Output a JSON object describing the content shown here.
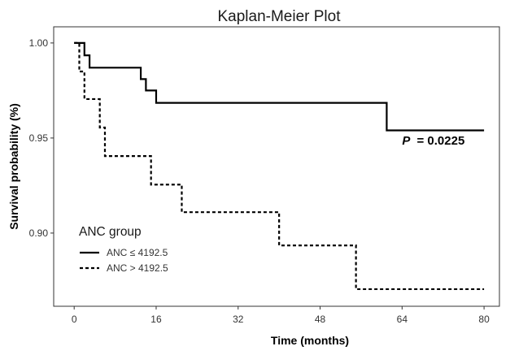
{
  "chart_data": {
    "type": "line",
    "title": "Kaplan-Meier Plot",
    "xlabel": "Time (months)",
    "ylabel": "Survival probability (%)",
    "xlim": [
      -4,
      83
    ],
    "ylim": [
      0.8615,
      1.0085
    ],
    "x_ticks": [
      0,
      16,
      32,
      48,
      64,
      80
    ],
    "x_tick_labels": [
      "0",
      "16",
      "32",
      "48",
      "64",
      "80"
    ],
    "y_ticks": [
      0.9,
      0.95,
      1.0
    ],
    "y_tick_labels": [
      "0.90",
      "0.95",
      "1.00"
    ],
    "grid": false,
    "legend": {
      "title": "ANC group",
      "placement": "bottom-left"
    },
    "annotation": {
      "p_label": "P",
      "p_value": "= 0.0225",
      "x": 64,
      "y": 0.9465
    },
    "series": [
      {
        "name": "ANC ≤ 4192.5",
        "line_style": "solid",
        "color": "#000000",
        "steps": [
          [
            0,
            1.0
          ],
          [
            2,
            0.9935
          ],
          [
            3,
            0.987
          ],
          [
            13,
            0.981
          ],
          [
            14,
            0.975
          ],
          [
            16,
            0.9685
          ],
          [
            61,
            0.954
          ],
          [
            80,
            0.954
          ]
        ]
      },
      {
        "name": "ANC > 4192.5",
        "line_style": "dashed",
        "color": "#000000",
        "steps": [
          [
            0,
            1.0
          ],
          [
            1,
            0.985
          ],
          [
            2,
            0.9705
          ],
          [
            5,
            0.9555
          ],
          [
            6,
            0.9405
          ],
          [
            15,
            0.9255
          ],
          [
            21,
            0.911
          ],
          [
            40,
            0.8935
          ],
          [
            55,
            0.8705
          ],
          [
            80,
            0.8705
          ]
        ]
      }
    ]
  }
}
